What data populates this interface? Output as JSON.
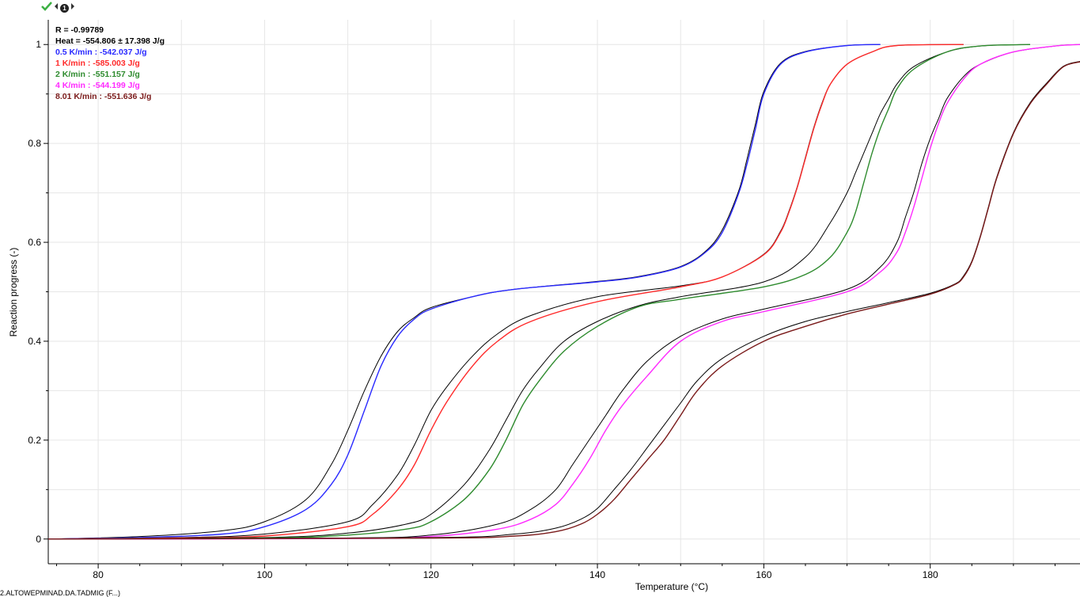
{
  "toolbar": {
    "icons": [
      "check-icon",
      "prev-icon",
      "badge-icon",
      "next-icon"
    ],
    "badge_text": "1"
  },
  "stats": {
    "r_label": "R = -0.99789",
    "heat_label": "Heat = -554.806 ± 17.398 J/g"
  },
  "bottom_note": "2.ALTOWEPMINAD.DA.TADMIG (F...)",
  "colors": {
    "blue": "#2a2aff",
    "red": "#ff2a2a",
    "green": "#2e8b2e",
    "magenta": "#ff2aff",
    "brown": "#7a1a1a",
    "model": "#000000",
    "grid": "#e6e6e6"
  },
  "chart_data": {
    "type": "line",
    "title": "",
    "xlabel": "Temperature (°C)",
    "ylabel": "Reaction progress (-)",
    "xlim": [
      74,
      198
    ],
    "ylim": [
      -0.05,
      1.05
    ],
    "xticks": [
      80,
      100,
      120,
      140,
      160,
      180
    ],
    "yticks": [
      0,
      0.2,
      0.4,
      0.6,
      0.8,
      1
    ],
    "ytick_labels": [
      "0",
      "0.2",
      "0.4",
      "0.6",
      "0.8",
      "1"
    ],
    "grid": true,
    "legend_position": "top-left",
    "series": [
      {
        "name": "0.5 K/min : -542.037 J/g",
        "color": "#2a2aff",
        "x": [
          74,
          85,
          95,
          100,
          105,
          108,
          110,
          112,
          114,
          116,
          118,
          120,
          125,
          130,
          140,
          145,
          150,
          153,
          155,
          157,
          158,
          159,
          160,
          162,
          165,
          170,
          174
        ],
        "y": [
          0,
          0.003,
          0.01,
          0.025,
          0.06,
          0.11,
          0.17,
          0.26,
          0.35,
          0.41,
          0.445,
          0.465,
          0.49,
          0.505,
          0.52,
          0.53,
          0.55,
          0.58,
          0.62,
          0.7,
          0.76,
          0.83,
          0.9,
          0.96,
          0.985,
          0.998,
          1.0
        ],
        "model_x": [
          74,
          85,
          95,
          100,
          105,
          108,
          110,
          112,
          114,
          116,
          118,
          120,
          125,
          130,
          140,
          145,
          150,
          153,
          155,
          157,
          158,
          159,
          160,
          162,
          165,
          170,
          174
        ],
        "model_y": [
          0,
          0.005,
          0.017,
          0.035,
          0.08,
          0.15,
          0.22,
          0.3,
          0.37,
          0.42,
          0.448,
          0.468,
          0.49,
          0.505,
          0.521,
          0.531,
          0.551,
          0.582,
          0.625,
          0.705,
          0.77,
          0.84,
          0.905,
          0.962,
          0.986,
          0.998,
          1.0
        ]
      },
      {
        "name": "1 K/min : -585.003 J/g",
        "color": "#ff2a2a",
        "x": [
          74,
          90,
          100,
          110,
          113,
          116,
          118,
          120,
          122,
          125,
          128,
          132,
          140,
          150,
          155,
          160,
          162,
          163,
          164,
          165,
          166,
          167,
          168,
          170,
          173,
          176,
          184
        ],
        "y": [
          0,
          0.002,
          0.006,
          0.025,
          0.05,
          0.1,
          0.15,
          0.22,
          0.28,
          0.35,
          0.4,
          0.44,
          0.48,
          0.51,
          0.53,
          0.575,
          0.62,
          0.66,
          0.71,
          0.77,
          0.83,
          0.88,
          0.92,
          0.96,
          0.985,
          0.998,
          1.0
        ],
        "model_x": [
          74,
          90,
          100,
          110,
          113,
          116,
          118,
          120,
          122,
          125,
          128,
          132,
          140,
          150,
          155,
          160,
          162,
          163,
          164,
          165,
          166,
          167,
          168,
          170,
          173,
          176,
          184
        ],
        "model_y": [
          0,
          0.003,
          0.01,
          0.035,
          0.07,
          0.13,
          0.19,
          0.26,
          0.31,
          0.37,
          0.415,
          0.452,
          0.49,
          0.512,
          0.53,
          0.576,
          0.622,
          0.662,
          0.712,
          0.772,
          0.832,
          0.882,
          0.92,
          0.96,
          0.985,
          0.998,
          1.0
        ]
      },
      {
        "name": "2 K/min : -551.157 J/g",
        "color": "#2e8b2e",
        "x": [
          74,
          100,
          110,
          117,
          120,
          124,
          127,
          129,
          131,
          133,
          136,
          140,
          145,
          150,
          160,
          165,
          168,
          170,
          171,
          172,
          173,
          174,
          175,
          176,
          178,
          182,
          186,
          192
        ],
        "y": [
          0,
          0.002,
          0.008,
          0.02,
          0.035,
          0.08,
          0.14,
          0.2,
          0.27,
          0.32,
          0.38,
          0.43,
          0.47,
          0.485,
          0.51,
          0.535,
          0.57,
          0.62,
          0.66,
          0.72,
          0.78,
          0.83,
          0.87,
          0.91,
          0.95,
          0.985,
          0.997,
          1.0
        ],
        "model_x": [
          74,
          100,
          110,
          117,
          120,
          124,
          127,
          129,
          131,
          133,
          136,
          140,
          145,
          150,
          160,
          165,
          168,
          170,
          171,
          172,
          173,
          174,
          175,
          176,
          178,
          182,
          186,
          192
        ],
        "model_y": [
          0,
          0.003,
          0.012,
          0.03,
          0.05,
          0.11,
          0.18,
          0.24,
          0.3,
          0.345,
          0.4,
          0.44,
          0.472,
          0.49,
          0.52,
          0.57,
          0.64,
          0.7,
          0.74,
          0.78,
          0.82,
          0.86,
          0.89,
          0.92,
          0.955,
          0.985,
          0.997,
          1.0
        ]
      },
      {
        "name": "4 K/min : -544.199 J/g",
        "color": "#ff2aff",
        "x": [
          74,
          110,
          120,
          128,
          132,
          135,
          137,
          139,
          141,
          143,
          146,
          150,
          155,
          160,
          170,
          174,
          176,
          177,
          178,
          179,
          180,
          181,
          182,
          184,
          186,
          190,
          195,
          198
        ],
        "y": [
          0,
          0.001,
          0.005,
          0.02,
          0.04,
          0.07,
          0.11,
          0.16,
          0.22,
          0.27,
          0.33,
          0.4,
          0.44,
          0.46,
          0.5,
          0.54,
          0.58,
          0.62,
          0.67,
          0.73,
          0.79,
          0.84,
          0.88,
          0.93,
          0.96,
          0.985,
          0.997,
          1.0
        ],
        "model_x": [
          74,
          110,
          120,
          128,
          132,
          135,
          137,
          139,
          141,
          143,
          146,
          150,
          155,
          160,
          170,
          174,
          176,
          177,
          178,
          179,
          180,
          181,
          182,
          184,
          186,
          190,
          195,
          198
        ],
        "model_y": [
          0,
          0.002,
          0.008,
          0.03,
          0.06,
          0.1,
          0.15,
          0.2,
          0.25,
          0.3,
          0.36,
          0.41,
          0.445,
          0.465,
          0.505,
          0.55,
          0.6,
          0.65,
          0.7,
          0.76,
          0.81,
          0.85,
          0.89,
          0.935,
          0.96,
          0.985,
          0.997,
          1.0
        ]
      },
      {
        "name": "8.01 K/min : -551.636 J/g",
        "color": "#7a1a1a",
        "x": [
          74,
          120,
          130,
          135,
          138,
          140,
          142,
          144,
          146,
          148,
          150,
          152,
          155,
          160,
          165,
          170,
          175,
          180,
          183,
          184,
          185,
          186,
          187,
          188,
          190,
          192,
          194,
          196,
          198
        ],
        "y": [
          0,
          0.002,
          0.006,
          0.015,
          0.03,
          0.05,
          0.08,
          0.12,
          0.16,
          0.2,
          0.25,
          0.3,
          0.35,
          0.4,
          0.43,
          0.455,
          0.475,
          0.495,
          0.515,
          0.53,
          0.56,
          0.61,
          0.67,
          0.73,
          0.82,
          0.88,
          0.92,
          0.955,
          0.965
        ],
        "model_x": [
          74,
          120,
          130,
          135,
          138,
          140,
          142,
          144,
          146,
          148,
          150,
          152,
          155,
          160,
          165,
          170,
          175,
          180,
          183,
          184,
          185,
          186,
          187,
          188,
          190,
          192,
          194,
          196,
          198
        ],
        "model_y": [
          0,
          0.003,
          0.01,
          0.022,
          0.04,
          0.062,
          0.1,
          0.14,
          0.185,
          0.23,
          0.275,
          0.32,
          0.365,
          0.41,
          0.44,
          0.46,
          0.478,
          0.497,
          0.516,
          0.532,
          0.562,
          0.612,
          0.672,
          0.732,
          0.822,
          0.882,
          0.922,
          0.956,
          0.966
        ]
      }
    ]
  }
}
